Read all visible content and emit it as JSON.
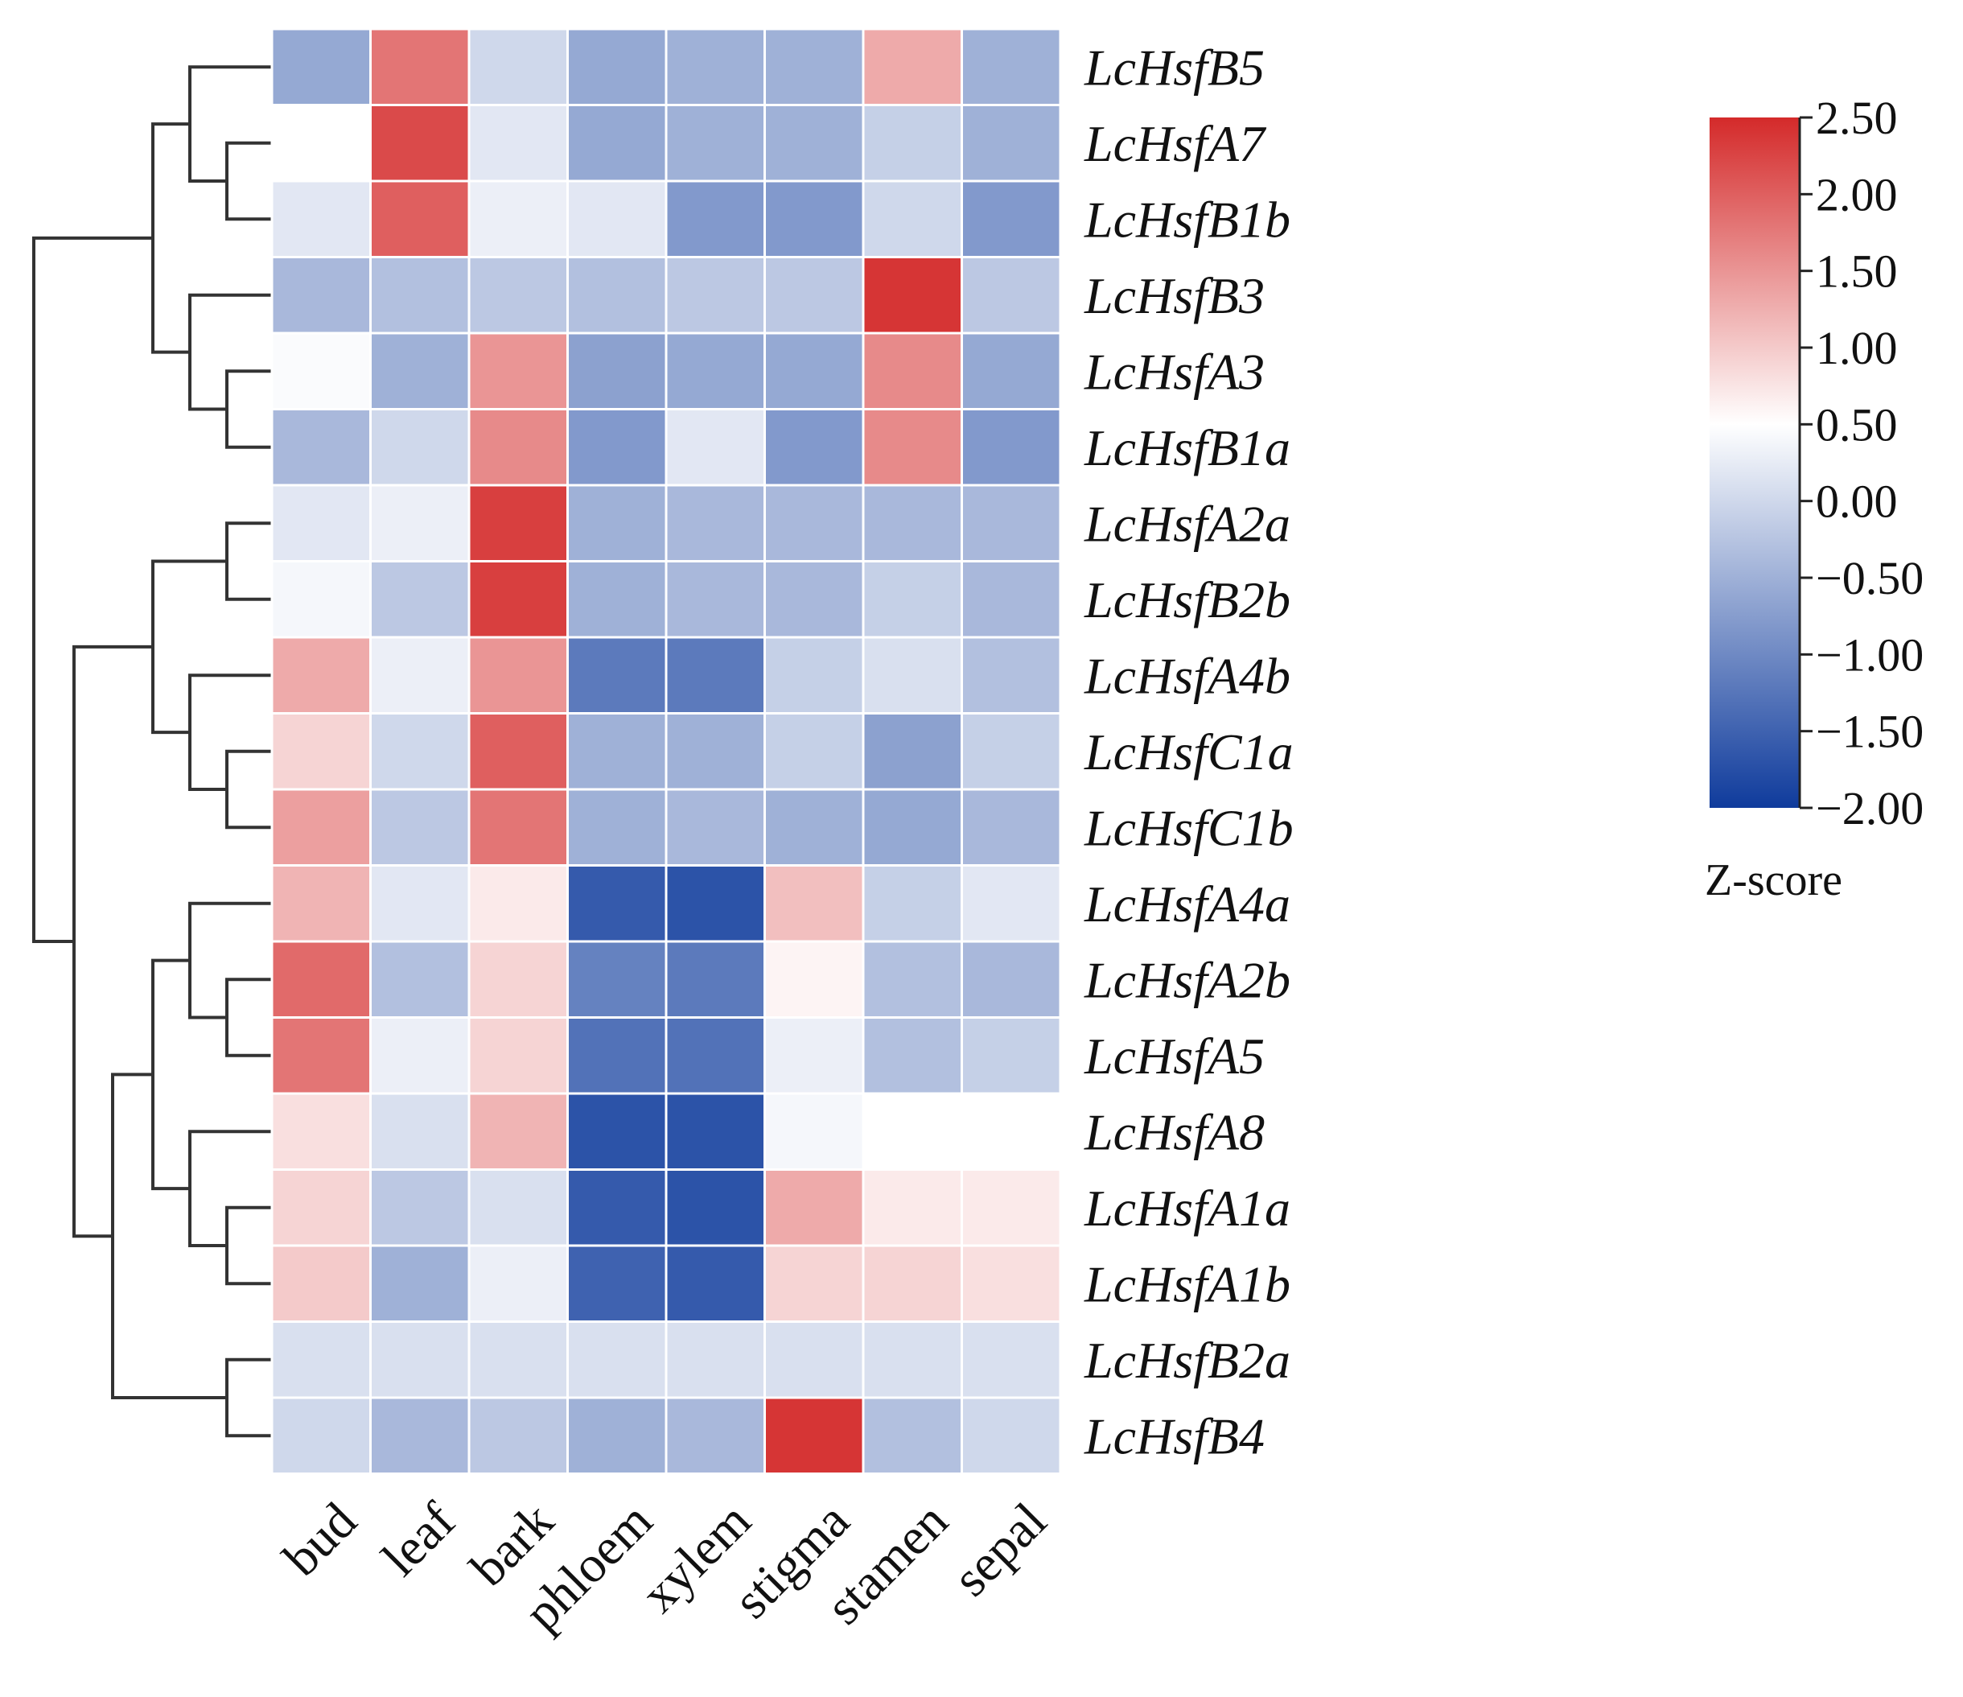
{
  "chart_data": {
    "type": "heatmap",
    "title": "",
    "rows": [
      "LcHsfB5",
      "LcHsfA7",
      "LcHsfB1b",
      "LcHsfB3",
      "LcHsfA3",
      "LcHsfB1a",
      "LcHsfA2a",
      "LcHsfB2b",
      "LcHsfA4b",
      "LcHsfC1a",
      "LcHsfC1b",
      "LcHsfA4a",
      "LcHsfA2b",
      "LcHsfA5",
      "LcHsfA8",
      "LcHsfA1a",
      "LcHsfA1b",
      "LcHsfB2a",
      "LcHsfB4"
    ],
    "columns": [
      "bud",
      "leaf",
      "bark",
      "phloem",
      "xylem",
      "stigma",
      "stamen",
      "sepal"
    ],
    "values": [
      [
        -0.6,
        1.8,
        0.0,
        -0.6,
        -0.5,
        -0.5,
        1.3,
        -0.5
      ],
      [
        0.5,
        2.2,
        0.2,
        -0.6,
        -0.5,
        -0.5,
        -0.1,
        -0.5
      ],
      [
        0.2,
        2.0,
        0.3,
        0.2,
        -0.8,
        -0.8,
        0.0,
        -0.8
      ],
      [
        -0.4,
        -0.3,
        -0.2,
        -0.3,
        -0.2,
        -0.2,
        2.4,
        -0.2
      ],
      [
        0.45,
        -0.5,
        1.5,
        -0.7,
        -0.6,
        -0.6,
        1.6,
        -0.6
      ],
      [
        -0.4,
        0.0,
        1.6,
        -0.8,
        0.2,
        -0.8,
        1.6,
        -0.8
      ],
      [
        0.2,
        0.3,
        2.3,
        -0.5,
        -0.4,
        -0.4,
        -0.4,
        -0.4
      ],
      [
        0.4,
        -0.2,
        2.3,
        -0.5,
        -0.4,
        -0.4,
        -0.1,
        -0.4
      ],
      [
        1.3,
        0.3,
        1.5,
        -1.2,
        -1.2,
        -0.1,
        0.1,
        -0.3
      ],
      [
        0.9,
        0.0,
        2.0,
        -0.5,
        -0.5,
        -0.1,
        -0.7,
        -0.1
      ],
      [
        1.4,
        -0.2,
        1.8,
        -0.5,
        -0.4,
        -0.5,
        -0.6,
        -0.4
      ],
      [
        1.2,
        0.2,
        0.7,
        -1.6,
        -1.7,
        1.1,
        -0.1,
        0.2
      ],
      [
        1.9,
        -0.3,
        0.9,
        -1.1,
        -1.2,
        0.6,
        -0.3,
        -0.4
      ],
      [
        1.8,
        0.3,
        0.9,
        -1.3,
        -1.3,
        0.3,
        -0.3,
        -0.1
      ],
      [
        0.8,
        0.1,
        1.2,
        -1.7,
        -1.7,
        0.4,
        0.5,
        0.5
      ],
      [
        0.9,
        -0.2,
        0.1,
        -1.6,
        -1.7,
        1.3,
        0.7,
        0.7
      ],
      [
        1.0,
        -0.5,
        0.3,
        -1.5,
        -1.6,
        0.9,
        0.9,
        0.8
      ],
      [
        0.1,
        0.1,
        0.1,
        0.1,
        0.1,
        0.1,
        0.1,
        0.1
      ],
      [
        0.0,
        -0.4,
        -0.2,
        -0.5,
        -0.4,
        2.4,
        -0.3,
        0.0
      ]
    ],
    "colorbar": {
      "label": "Z-score",
      "ticks": [
        "2.50",
        "2.00",
        "1.50",
        "1.00",
        "0.50",
        "0.00",
        "−0.50",
        "−1.00",
        "−1.50",
        "−2.00"
      ],
      "range": [
        -2.0,
        2.5
      ],
      "center": 0.5,
      "colors": {
        "low": "#0f3b9c",
        "mid": "#ffffff",
        "high": "#d42a2a"
      }
    },
    "row_dendrogram": {
      "side": "left",
      "linkage": [
        [
          1,
          2
        ],
        [
          0,
          "m0"
        ],
        [
          4,
          5
        ],
        [
          3,
          "m2"
        ],
        [
          "m1",
          "m3"
        ],
        [
          6,
          7
        ],
        [
          9,
          10
        ],
        [
          8,
          "m6"
        ],
        [
          "m5",
          "m7"
        ],
        [
          12,
          13
        ],
        [
          11,
          "m9"
        ],
        [
          15,
          16
        ],
        [
          14,
          "m11"
        ],
        [
          "m10",
          "m12"
        ],
        [
          17,
          18
        ],
        [
          "m13",
          "m14"
        ],
        [
          "m8",
          "m15"
        ],
        [
          "m4",
          "m16"
        ]
      ]
    }
  }
}
